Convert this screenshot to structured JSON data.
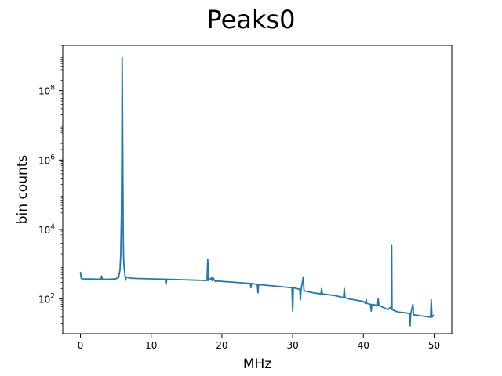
{
  "chart_data": {
    "type": "line",
    "title": "Peaks0",
    "xlabel": "MHz",
    "ylabel": "bin counts",
    "xlim": [
      -2.5,
      52.5
    ],
    "ylim": [
      10,
      2000000000
    ],
    "yscale": "log",
    "grid": false,
    "legend": "none",
    "x_ticks": [
      0,
      10,
      20,
      30,
      40,
      50
    ],
    "x_tick_labels": [
      "0",
      "10",
      "20",
      "30",
      "40",
      "50"
    ],
    "y_ticks": [
      100,
      10000,
      1000000,
      100000000
    ],
    "y_tick_labels": [
      {
        "base": "10",
        "exp": "2"
      },
      {
        "base": "10",
        "exp": "4"
      },
      {
        "base": "10",
        "exp": "6"
      },
      {
        "base": "10",
        "exp": "8"
      }
    ],
    "series": [
      {
        "color": "#1f77b4",
        "x": [
          0.0,
          0.1,
          0.2,
          2.0,
          2.9,
          3.0,
          3.1,
          4.0,
          5.0,
          5.4,
          5.6,
          5.7,
          5.8,
          5.85,
          5.9,
          5.95,
          6.0,
          6.05,
          6.1,
          6.2,
          6.3,
          6.4,
          6.5,
          7.0,
          8.0,
          10.0,
          12.0,
          12.1,
          12.2,
          14.0,
          16.0,
          17.9,
          18.0,
          18.1,
          18.5,
          18.6,
          18.7,
          19.0,
          19.1,
          19.2,
          20.0,
          22.0,
          24.0,
          24.1,
          24.2,
          25.0,
          25.1,
          25.2,
          26.0,
          28.0,
          29.9,
          30.0,
          30.1,
          31.0,
          31.1,
          31.2,
          31.5,
          31.6,
          31.7,
          33.0,
          34.0,
          34.1,
          34.2,
          36.0,
          37.2,
          37.3,
          37.4,
          38.0,
          40.0,
          40.3,
          40.4,
          40.5,
          41.0,
          41.1,
          41.2,
          42.0,
          42.1,
          42.2,
          43.0,
          43.5,
          43.95,
          44.0,
          44.05,
          44.5,
          45.0,
          46.0,
          46.5,
          46.6,
          46.7,
          47.0,
          47.1,
          47.2,
          48.0,
          49.0,
          49.5,
          49.6,
          49.7,
          49.9,
          50.0
        ],
        "y": [
          600,
          400,
          380,
          375,
          370,
          460,
          370,
          370,
          380,
          420,
          700,
          2000,
          30000,
          1000000,
          900000000,
          20000000,
          400000,
          8000,
          1500,
          700,
          480,
          350,
          430,
          400,
          390,
          380,
          370,
          260,
          370,
          360,
          350,
          340,
          1400,
          340,
          400,
          340,
          420,
          330,
          320,
          330,
          320,
          300,
          280,
          210,
          280,
          260,
          150,
          260,
          250,
          230,
          210,
          45,
          210,
          190,
          95,
          190,
          430,
          180,
          170,
          150,
          140,
          200,
          140,
          125,
          110,
          200,
          110,
          100,
          85,
          75,
          95,
          75,
          70,
          45,
          70,
          65,
          100,
          65,
          55,
          50,
          60,
          3500,
          50,
          45,
          42,
          40,
          38,
          17,
          38,
          70,
          35,
          35,
          33,
          31,
          30,
          95,
          30,
          33,
          34
        ]
      }
    ]
  }
}
